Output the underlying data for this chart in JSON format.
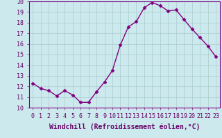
{
  "x": [
    0,
    1,
    2,
    3,
    4,
    5,
    6,
    7,
    8,
    9,
    10,
    11,
    12,
    13,
    14,
    15,
    16,
    17,
    18,
    19,
    20,
    21,
    22,
    23
  ],
  "y": [
    12.3,
    11.8,
    11.6,
    11.1,
    11.6,
    11.2,
    10.5,
    10.5,
    11.5,
    12.4,
    13.5,
    15.9,
    17.6,
    18.1,
    19.4,
    19.9,
    19.6,
    19.1,
    19.2,
    18.3,
    17.4,
    16.6,
    15.8,
    14.8
  ],
  "line_color": "#800080",
  "marker": "D",
  "markersize": 2.5,
  "linewidth": 1.0,
  "bg_color": "#cce9ee",
  "grid_color": "#aacccc",
  "xlabel": "Windchill (Refroidissement éolien,°C)",
  "ylim": [
    10,
    20
  ],
  "xlim_min": -0.5,
  "xlim_max": 23.5,
  "yticks": [
    10,
    11,
    12,
    13,
    14,
    15,
    16,
    17,
    18,
    19,
    20
  ],
  "xticks": [
    0,
    1,
    2,
    3,
    4,
    5,
    6,
    7,
    8,
    9,
    10,
    11,
    12,
    13,
    14,
    15,
    16,
    17,
    18,
    19,
    20,
    21,
    22,
    23
  ],
  "tick_fontsize": 6,
  "xlabel_fontsize": 7,
  "tick_color": "#660066",
  "label_color": "#660066"
}
